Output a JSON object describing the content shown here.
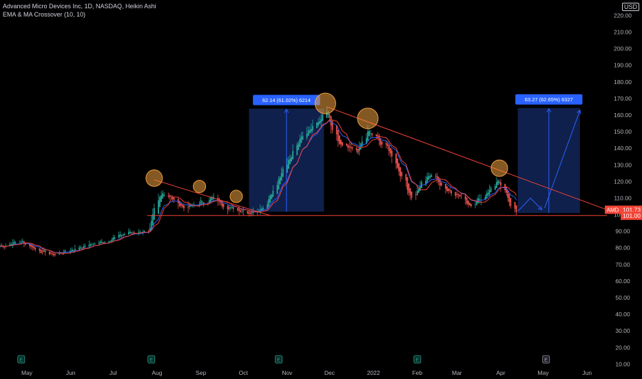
{
  "header": {
    "title": "Advanced Micro Devices Inc, 1D, NASDAQ, Heikin Ashi",
    "indicator": "EMA & MA Crossover (10, 10)",
    "currency": "USD"
  },
  "colors": {
    "background": "#000000",
    "up": "#26a69a",
    "down": "#ef5350",
    "ema": "#2962ff",
    "ma": "#f44336",
    "trendline": "#f44336",
    "measure_fill": "#1e3a8a",
    "measure_label": "#2962ff",
    "circle": "#f0a040"
  },
  "price_axis": {
    "ticks": [
      220,
      210,
      200,
      190,
      180,
      170,
      160,
      150,
      140,
      130,
      120,
      110,
      100,
      90,
      80,
      70,
      60,
      50,
      40,
      30,
      20,
      10
    ],
    "tick_labels": [
      "220.00",
      "210.00",
      "200.00",
      "190.00",
      "180.00",
      "170.00",
      "160.00",
      "150.00",
      "140.00",
      "130.00",
      "120.00",
      "110.00",
      "100.00",
      "90.00",
      "80.00",
      "70.00",
      "60.00",
      "50.00",
      "40.00",
      "30.00",
      "20.00",
      "10.00"
    ]
  },
  "time_axis": {
    "labels": [
      "May",
      "Jun",
      "Jul",
      "Aug",
      "Sep",
      "Oct",
      "Nov",
      "Dec",
      "2022",
      "Feb",
      "Mar",
      "Apr",
      "May",
      "Jun"
    ]
  },
  "price_badges": [
    {
      "symbol": "AMD",
      "value": "101.73",
      "price": 101.73,
      "color": "#f44336"
    },
    {
      "value": "101.00",
      "price": 101.0,
      "color": "#f44336"
    }
  ],
  "measure_labels": [
    {
      "text": "62.14 (61.02%) 6214"
    },
    {
      "text": "63.27 (62.65%) 6327"
    }
  ],
  "earnings_marker": "E",
  "chart_data": {
    "type": "candlestick",
    "title": "Advanced Micro Devices Inc, 1D, NASDAQ, Heikin Ashi",
    "ylim": [
      6,
      226
    ],
    "x_range": [
      "2021-04-12",
      "2022-06-15"
    ],
    "price_path": [
      [
        "2021-04-12",
        81
      ],
      [
        "2021-04-26",
        84
      ],
      [
        "2021-05-10",
        78
      ],
      [
        "2021-05-20",
        76
      ],
      [
        "2021-06-10",
        81
      ],
      [
        "2021-06-25",
        84
      ],
      [
        "2021-07-10",
        89
      ],
      [
        "2021-07-20",
        90
      ],
      [
        "2021-07-26",
        88
      ],
      [
        "2021-07-30",
        106
      ],
      [
        "2021-08-04",
        114
      ],
      [
        "2021-08-10",
        110
      ],
      [
        "2021-08-20",
        104
      ],
      [
        "2021-09-01",
        107
      ],
      [
        "2021-09-10",
        110
      ],
      [
        "2021-09-20",
        104
      ],
      [
        "2021-09-30",
        103
      ],
      [
        "2021-10-05",
        101
      ],
      [
        "2021-10-15",
        105
      ],
      [
        "2021-10-25",
        120
      ],
      [
        "2021-11-01",
        132
      ],
      [
        "2021-11-10",
        148
      ],
      [
        "2021-11-18",
        152
      ],
      [
        "2021-11-29",
        162
      ],
      [
        "2021-12-03",
        148
      ],
      [
        "2021-12-10",
        140
      ],
      [
        "2021-12-20",
        138
      ],
      [
        "2021-12-28",
        150
      ],
      [
        "2022-01-03",
        146
      ],
      [
        "2022-01-12",
        138
      ],
      [
        "2022-01-20",
        124
      ],
      [
        "2022-01-28",
        110
      ],
      [
        "2022-02-03",
        118
      ],
      [
        "2022-02-10",
        125
      ],
      [
        "2022-02-20",
        116
      ],
      [
        "2022-03-01",
        112
      ],
      [
        "2022-03-10",
        106
      ],
      [
        "2022-03-18",
        110
      ],
      [
        "2022-03-29",
        120
      ],
      [
        "2022-04-03",
        114
      ],
      [
        "2022-04-08",
        106
      ],
      [
        "2022-04-12",
        101.73
      ]
    ],
    "trendlines": [
      {
        "from": [
          "2021-07-25",
          99.5
        ],
        "to": [
          "2022-06-15",
          99.5
        ]
      },
      {
        "from": [
          "2021-07-30",
          121
        ],
        "to": [
          "2021-10-20",
          99.5
        ]
      },
      {
        "from": [
          "2021-11-29",
          165
        ],
        "to": [
          "2022-06-15",
          103
        ]
      }
    ],
    "measures": [
      {
        "from_date": "2021-10-05",
        "to_date": "2021-11-27",
        "low": 101.8,
        "high": 163.9,
        "change": 62.14,
        "percent": 61.02,
        "ticks": 6214
      },
      {
        "from_date": "2022-04-13",
        "to_date": "2022-05-27",
        "low": 101.0,
        "high": 164.27,
        "change": 63.27,
        "percent": 62.65,
        "ticks": 6327
      }
    ],
    "highlight_circles": [
      {
        "date": "2021-07-30",
        "price": 122
      },
      {
        "date": "2021-08-31",
        "price": 117
      },
      {
        "date": "2021-09-26",
        "price": 111
      },
      {
        "date": "2021-11-28",
        "price": 167
      },
      {
        "date": "2021-12-28",
        "price": 158
      },
      {
        "date": "2022-03-31",
        "price": 128
      }
    ],
    "projection_arrows": [
      [
        [
          "2022-04-13",
          102
        ],
        [
          "2022-04-22",
          110
        ],
        [
          "2022-04-30",
          103
        ]
      ],
      [
        [
          "2022-05-02",
          104
        ],
        [
          "2022-05-27",
          163
        ]
      ]
    ],
    "earnings_dates": [
      "2021-04-27",
      "2021-07-28",
      "2021-10-26",
      "2022-02-01",
      "2022-05-03"
    ],
    "last_price": 101.73
  }
}
